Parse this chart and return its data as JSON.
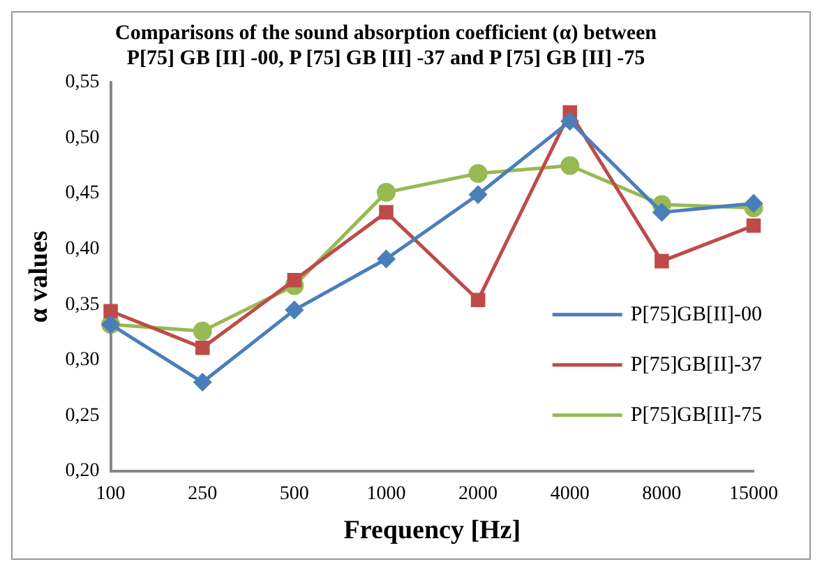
{
  "chart_data": {
    "type": "line",
    "title": "Comparisons of the sound absorption coefficient (α) between P[75] GB [II] -00, P [75] GB [II] -37 and P [75] GB [II] -75",
    "xlabel": "Frequency [Hz]",
    "ylabel": "α values",
    "categories": [
      "100",
      "250",
      "500",
      "1000",
      "2000",
      "4000",
      "8000",
      "15000"
    ],
    "series": [
      {
        "name": "P[75]GB[II]-00",
        "color": "#4a7ebb",
        "marker": "diamond",
        "values": [
          0.332,
          0.28,
          0.345,
          0.391,
          0.449,
          0.515,
          0.433,
          0.441
        ]
      },
      {
        "name": "P[75]GB[II]-37",
        "color": "#be4b48",
        "marker": "square",
        "values": [
          0.344,
          0.311,
          0.372,
          0.433,
          0.354,
          0.523,
          0.389,
          0.421
        ]
      },
      {
        "name": "P[75]GB[II]-75",
        "color": "#98b954",
        "marker": "circle",
        "values": [
          0.332,
          0.326,
          0.367,
          0.451,
          0.468,
          0.475,
          0.44,
          0.437
        ]
      }
    ],
    "ylim": [
      0.2,
      0.55
    ],
    "yticks": [
      {
        "value": 0.2,
        "label": "0,20"
      },
      {
        "value": 0.25,
        "label": "0,25"
      },
      {
        "value": 0.3,
        "label": "0,30"
      },
      {
        "value": 0.35,
        "label": "0,35"
      },
      {
        "value": 0.4,
        "label": "0,40"
      },
      {
        "value": 0.45,
        "label": "0,45"
      },
      {
        "value": 0.5,
        "label": "0,50"
      },
      {
        "value": 0.55,
        "label": "0,55"
      }
    ],
    "grid": false,
    "legend": "right",
    "line_style": "solid"
  }
}
